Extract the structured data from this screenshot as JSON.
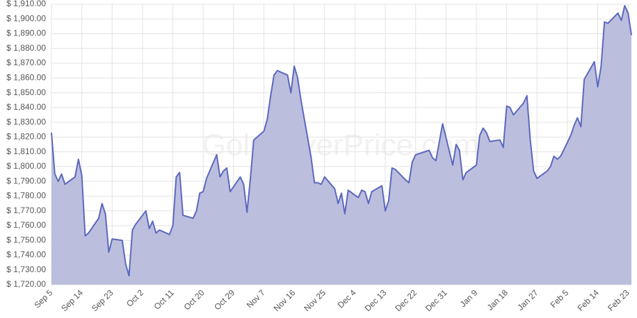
{
  "chart_data": {
    "type": "area",
    "watermark": "GoldSilverPrice.com",
    "x": [
      0,
      1,
      2,
      3,
      4,
      7,
      8,
      9,
      10,
      11,
      14,
      15,
      16,
      17,
      18,
      21,
      22,
      23,
      24,
      25,
      28,
      29,
      30,
      31,
      32,
      35,
      36,
      37,
      38,
      39,
      42,
      43,
      44,
      45,
      46,
      49,
      50,
      51,
      52,
      53,
      56,
      57,
      58,
      59,
      60,
      63,
      64,
      65,
      66,
      67,
      70,
      71,
      72,
      73,
      74,
      77,
      78,
      79,
      80,
      81,
      84,
      85,
      86,
      87,
      88,
      91,
      92,
      93,
      94,
      95,
      98,
      99,
      100,
      101,
      102,
      105,
      106,
      107,
      108,
      112,
      113,
      114,
      116,
      119,
      120,
      121,
      122,
      123,
      126,
      127,
      128,
      129,
      130,
      133,
      134,
      135,
      136,
      137,
      140,
      141,
      142,
      143,
      144,
      147,
      148,
      149,
      150,
      151,
      154,
      155,
      156,
      157,
      158,
      161,
      162,
      163,
      164,
      165,
      168,
      169,
      170,
      171,
      172
    ],
    "series": [
      {
        "color": "#5b68bd",
        "fill": "#b8bbdc",
        "values": [
          1823,
          1795,
          1790,
          1795,
          1788,
          1793,
          1805,
          1794,
          1753,
          1755,
          1765,
          1775,
          1768,
          1742,
          1751,
          1750,
          1734,
          1726,
          1757,
          1761,
          1770,
          1758,
          1763,
          1755,
          1757,
          1754,
          1760,
          1793,
          1796,
          1767,
          1765,
          1770,
          1782,
          1783,
          1792,
          1808,
          1793,
          1797,
          1799,
          1783,
          1793,
          1788,
          1769,
          1792,
          1818,
          1824,
          1832,
          1848,
          1862,
          1865,
          1862,
          1850,
          1868,
          1860,
          1845,
          1806,
          1789,
          1789,
          1788,
          1793,
          1785,
          1775,
          1782,
          1768,
          1784,
          1779,
          1784,
          1783,
          1775,
          1783,
          1787,
          1770,
          1777,
          1799,
          1798,
          1791,
          1789,
          1803,
          1808,
          1811,
          1806,
          1804,
          1829,
          1801,
          1815,
          1811,
          1791,
          1796,
          1801,
          1821,
          1826,
          1823,
          1817,
          1818,
          1813,
          1841,
          1840,
          1835,
          1843,
          1848,
          1818,
          1797,
          1792,
          1797,
          1800,
          1807,
          1805,
          1807,
          1821,
          1828,
          1833,
          1827,
          1859,
          1871,
          1854,
          1868,
          1898,
          1897,
          1904,
          1899,
          1909,
          1904,
          1889
        ]
      }
    ],
    "xlim": [
      0,
      172
    ],
    "xticks": [
      {
        "value": 0,
        "label": "Sep 5"
      },
      {
        "value": 9,
        "label": "Sep 14"
      },
      {
        "value": 18,
        "label": "Sep 23"
      },
      {
        "value": 27,
        "label": "Oct 2"
      },
      {
        "value": 36,
        "label": "Oct 11"
      },
      {
        "value": 45,
        "label": "Oct 20"
      },
      {
        "value": 54,
        "label": "Oct 29"
      },
      {
        "value": 63,
        "label": "Nov 7"
      },
      {
        "value": 72,
        "label": "Nov 16"
      },
      {
        "value": 81,
        "label": "Nov 25"
      },
      {
        "value": 90,
        "label": "Dec 4"
      },
      {
        "value": 99,
        "label": "Dec 13"
      },
      {
        "value": 108,
        "label": "Dec 22"
      },
      {
        "value": 117,
        "label": "Dec 31"
      },
      {
        "value": 126,
        "label": "Jan 9"
      },
      {
        "value": 135,
        "label": "Jan 18"
      },
      {
        "value": 144,
        "label": "Jan 27"
      },
      {
        "value": 153,
        "label": "Feb 5"
      },
      {
        "value": 162,
        "label": "Feb 14"
      },
      {
        "value": 171,
        "label": "Feb 23"
      }
    ],
    "ylim": [
      1720,
      1910
    ],
    "yticks": [
      {
        "value": 1720,
        "label": "$ 1,720.00"
      },
      {
        "value": 1730,
        "label": "$ 1,730.00"
      },
      {
        "value": 1740,
        "label": "$ 1,740.00"
      },
      {
        "value": 1750,
        "label": "$ 1,750.00"
      },
      {
        "value": 1760,
        "label": "$ 1,760.00"
      },
      {
        "value": 1770,
        "label": "$ 1,770.00"
      },
      {
        "value": 1780,
        "label": "$ 1,780.00"
      },
      {
        "value": 1790,
        "label": "$ 1,790.00"
      },
      {
        "value": 1800,
        "label": "$ 1,800.00"
      },
      {
        "value": 1810,
        "label": "$ 1,810.00"
      },
      {
        "value": 1820,
        "label": "$ 1,820.00"
      },
      {
        "value": 1830,
        "label": "$ 1,830.00"
      },
      {
        "value": 1840,
        "label": "$ 1,840.00"
      },
      {
        "value": 1850,
        "label": "$ 1,850.00"
      },
      {
        "value": 1860,
        "label": "$ 1,860.00"
      },
      {
        "value": 1870,
        "label": "$ 1,870.00"
      },
      {
        "value": 1880,
        "label": "$ 1,880.00"
      },
      {
        "value": 1890,
        "label": "$ 1,890.00"
      },
      {
        "value": 1900,
        "label": "$ 1,900.00"
      },
      {
        "value": 1910,
        "label": "$ 1,910.00"
      }
    ],
    "grid": true
  }
}
